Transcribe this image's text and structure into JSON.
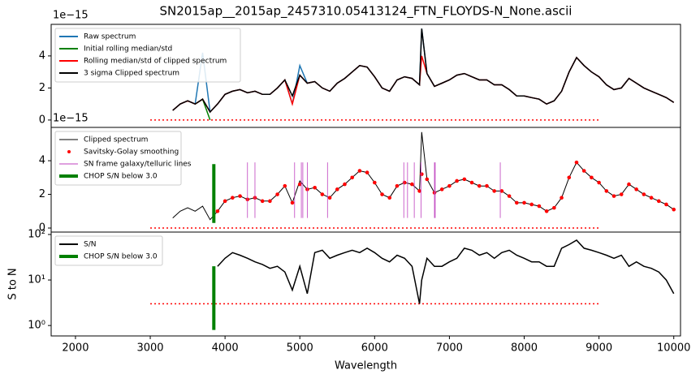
{
  "chart_data": [
    {
      "type": "line",
      "title": "SN2015ap__2015ap_2457310.05413124_FTN_FLOYDS-N_None.ascii",
      "offset_label": "1e−15",
      "xlim": [
        1675,
        10090
      ],
      "ylim": [
        -0.46,
        5.97
      ],
      "yticks": [
        0,
        2,
        4
      ],
      "x": [
        3300,
        3400,
        3500,
        3600,
        3700,
        3800,
        3900,
        4000,
        4100,
        4200,
        4300,
        4400,
        4500,
        4600,
        4700,
        4800,
        4900,
        5000,
        5100,
        5200,
        5300,
        5400,
        5500,
        5600,
        5700,
        5800,
        5900,
        6000,
        6100,
        6200,
        6300,
        6400,
        6500,
        6600,
        6630,
        6700,
        6800,
        6900,
        7000,
        7100,
        7200,
        7300,
        7400,
        7500,
        7600,
        7700,
        7800,
        7900,
        8000,
        8100,
        8200,
        8300,
        8400,
        8500,
        8600,
        8700,
        8800,
        8900,
        9000,
        9100,
        9200,
        9300,
        9400,
        9500,
        9600,
        9700,
        9800,
        9900,
        10000
      ],
      "hline": {
        "y": 0,
        "xmin": 3000,
        "xmax": 9000,
        "color": "#ff0000"
      },
      "series": [
        {
          "name": "Raw spectrum",
          "color": "#1f77b4",
          "values": [
            0.6,
            1.0,
            1.2,
            1.0,
            4.2,
            0.5,
            1.0,
            1.6,
            1.8,
            1.9,
            1.7,
            1.8,
            1.6,
            1.6,
            2.0,
            2.5,
            1.0,
            3.4,
            2.3,
            2.4,
            2.0,
            1.8,
            2.3,
            2.6,
            3.0,
            3.4,
            3.3,
            2.7,
            2.0,
            1.8,
            2.5,
            2.7,
            2.6,
            2.2,
            5.7,
            2.9,
            2.1,
            2.3,
            2.5,
            2.8,
            2.9,
            2.7,
            2.5,
            2.5,
            2.2,
            2.2,
            1.9,
            1.5,
            1.5,
            1.4,
            1.3,
            1.0,
            1.2,
            1.8,
            3.0,
            3.9,
            3.4,
            3.0,
            2.7,
            2.2,
            1.9,
            2.0,
            2.6,
            2.3,
            2.0,
            1.8,
            1.6,
            1.4,
            1.1
          ]
        },
        {
          "name": "Initial rolling median/std",
          "color": "#008000",
          "values": [
            null,
            null,
            null,
            1.0,
            1.3,
            0.0,
            null,
            null,
            null,
            null,
            null,
            null,
            null,
            null,
            null,
            null,
            null,
            null,
            null,
            null,
            null,
            null,
            null,
            null,
            null,
            null,
            null,
            null,
            null,
            null,
            null,
            null,
            null,
            null,
            null,
            null,
            null,
            null,
            null,
            null,
            null,
            null,
            null,
            null,
            null,
            null,
            null,
            null,
            null,
            null,
            null,
            null,
            null,
            null,
            null,
            null,
            null,
            null,
            null,
            null,
            null,
            null,
            null,
            null,
            null,
            null,
            null,
            null,
            null
          ]
        },
        {
          "name": "Rolling median/std of clipped spectrum",
          "color": "#ff0000",
          "values": [
            0.6,
            1.0,
            1.2,
            1.0,
            1.3,
            0.5,
            1.0,
            1.6,
            1.8,
            1.9,
            1.7,
            1.8,
            1.6,
            1.6,
            2.0,
            2.5,
            1.0,
            2.8,
            2.3,
            2.4,
            2.0,
            1.8,
            2.3,
            2.6,
            3.0,
            3.4,
            3.3,
            2.7,
            2.0,
            1.8,
            2.5,
            2.7,
            2.6,
            2.2,
            4.0,
            2.9,
            2.1,
            2.3,
            2.5,
            2.8,
            2.9,
            2.7,
            2.5,
            2.5,
            2.2,
            2.2,
            1.9,
            1.5,
            1.5,
            1.4,
            1.3,
            1.0,
            1.2,
            1.8,
            3.0,
            3.9,
            3.4,
            3.0,
            2.7,
            2.2,
            1.9,
            2.0,
            2.6,
            2.3,
            2.0,
            1.8,
            1.6,
            1.4,
            1.1
          ]
        },
        {
          "name": "3 sigma Clipped spectrum",
          "color": "#000000",
          "values": [
            0.6,
            1.0,
            1.2,
            1.0,
            1.3,
            0.5,
            1.0,
            1.6,
            1.8,
            1.9,
            1.7,
            1.8,
            1.6,
            1.6,
            2.0,
            2.5,
            1.5,
            2.8,
            2.3,
            2.4,
            2.0,
            1.8,
            2.3,
            2.6,
            3.0,
            3.4,
            3.3,
            2.7,
            2.0,
            1.8,
            2.5,
            2.7,
            2.6,
            2.2,
            5.7,
            2.9,
            2.1,
            2.3,
            2.5,
            2.8,
            2.9,
            2.7,
            2.5,
            2.5,
            2.2,
            2.2,
            1.9,
            1.5,
            1.5,
            1.4,
            1.3,
            1.0,
            1.2,
            1.8,
            3.0,
            3.9,
            3.4,
            3.0,
            2.7,
            2.2,
            1.9,
            2.0,
            2.6,
            2.3,
            2.0,
            1.8,
            1.6,
            1.4,
            1.1
          ]
        }
      ]
    },
    {
      "type": "line",
      "offset_label": "1e−15",
      "xlim": [
        1675,
        10090
      ],
      "ylim": [
        -0.24,
        5.98
      ],
      "yticks": [
        0,
        2,
        4
      ],
      "x": [
        3300,
        3400,
        3500,
        3600,
        3700,
        3800,
        3900,
        4000,
        4100,
        4200,
        4300,
        4400,
        4500,
        4600,
        4700,
        4800,
        4900,
        5000,
        5100,
        5200,
        5300,
        5400,
        5500,
        5600,
        5700,
        5800,
        5900,
        6000,
        6100,
        6200,
        6300,
        6400,
        6500,
        6600,
        6630,
        6700,
        6800,
        6900,
        7000,
        7100,
        7200,
        7300,
        7400,
        7500,
        7600,
        7700,
        7800,
        7900,
        8000,
        8100,
        8200,
        8300,
        8400,
        8500,
        8600,
        8700,
        8800,
        8900,
        9000,
        9100,
        9200,
        9300,
        9400,
        9500,
        9600,
        9700,
        9800,
        9900,
        10000
      ],
      "hline": {
        "y": 0,
        "xmin": 3000,
        "xmax": 9000,
        "color": "#ff0000"
      },
      "series": [
        {
          "name": "Clipped spectrum",
          "color": "#000000",
          "values": [
            0.6,
            1.0,
            1.2,
            1.0,
            1.3,
            0.5,
            1.0,
            1.6,
            1.8,
            1.9,
            1.7,
            1.8,
            1.6,
            1.6,
            2.0,
            2.5,
            1.5,
            2.8,
            2.3,
            2.4,
            2.0,
            1.8,
            2.3,
            2.6,
            3.0,
            3.4,
            3.3,
            2.7,
            2.0,
            1.8,
            2.5,
            2.7,
            2.6,
            2.2,
            5.7,
            2.9,
            2.1,
            2.3,
            2.5,
            2.8,
            2.9,
            2.7,
            2.5,
            2.5,
            2.2,
            2.2,
            1.9,
            1.5,
            1.5,
            1.4,
            1.3,
            1.0,
            1.2,
            1.8,
            3.0,
            3.9,
            3.4,
            3.0,
            2.7,
            2.2,
            1.9,
            2.0,
            2.6,
            2.3,
            2.0,
            1.8,
            1.6,
            1.4,
            1.1
          ]
        },
        {
          "name": "Savitsky-Golay smoothing",
          "color": "#ff0000",
          "style": "dots",
          "values": [
            null,
            null,
            null,
            null,
            null,
            null,
            1.0,
            1.6,
            1.8,
            1.9,
            1.7,
            1.8,
            1.6,
            1.6,
            2.0,
            2.5,
            1.5,
            2.6,
            2.3,
            2.4,
            2.0,
            1.8,
            2.3,
            2.6,
            3.0,
            3.4,
            3.3,
            2.7,
            2.0,
            1.8,
            2.5,
            2.7,
            2.6,
            2.2,
            3.2,
            2.9,
            2.1,
            2.3,
            2.5,
            2.8,
            2.9,
            2.7,
            2.5,
            2.5,
            2.2,
            2.2,
            1.9,
            1.5,
            1.5,
            1.4,
            1.3,
            1.0,
            1.2,
            1.8,
            3.0,
            3.9,
            3.4,
            3.0,
            2.7,
            2.2,
            1.9,
            2.0,
            2.6,
            2.3,
            2.0,
            1.8,
            1.6,
            1.4,
            1.1
          ]
        },
        {
          "name": "SN frame galaxy/telluric lines",
          "color": "#bf40bf",
          "style": "vline",
          "ymin": 0.6,
          "ymax": 3.9,
          "x": [
            4300,
            4400,
            4930,
            5020,
            5040,
            5100,
            5370,
            6390,
            6440,
            6530,
            6620,
            6800,
            6810,
            7680
          ]
        },
        {
          "name": "CHOP S/N below 3.0",
          "color": "#008000",
          "style": "vbar",
          "ymin": 0.3,
          "ymax": 3.8,
          "x": [
            3850
          ]
        }
      ]
    },
    {
      "type": "line",
      "ylabel": "S to N",
      "xlabel": "Wavelength",
      "y_scale": "log",
      "xlim": [
        1675,
        10090
      ],
      "ylim": [
        0.59,
        113
      ],
      "yticks": [
        {
          "value": 1,
          "label": "10⁰"
        },
        {
          "value": 10,
          "label": "10¹"
        },
        {
          "value": 100,
          "label": "10²"
        }
      ],
      "xticks": [
        2000,
        3000,
        4000,
        5000,
        6000,
        7000,
        8000,
        9000,
        10000
      ],
      "x": [
        3300,
        3400,
        3500,
        3600,
        3700,
        3800,
        3900,
        4000,
        4100,
        4200,
        4300,
        4400,
        4500,
        4600,
        4700,
        4800,
        4900,
        5000,
        5100,
        5200,
        5300,
        5400,
        5500,
        5600,
        5700,
        5800,
        5900,
        6000,
        6100,
        6200,
        6300,
        6400,
        6500,
        6600,
        6630,
        6700,
        6800,
        6900,
        7000,
        7100,
        7200,
        7300,
        7400,
        7500,
        7600,
        7700,
        7800,
        7900,
        8000,
        8100,
        8200,
        8300,
        8400,
        8500,
        8600,
        8700,
        8800,
        8900,
        9000,
        9100,
        9200,
        9300,
        9400,
        9500,
        9600,
        9700,
        9800,
        9900,
        10000
      ],
      "hline": {
        "y": 3,
        "xmin": 3000,
        "xmax": 9000,
        "color": "#ff0000"
      },
      "series": [
        {
          "name": "S/N",
          "color": "#000000",
          "values": [
            null,
            null,
            null,
            null,
            null,
            null,
            20,
            30,
            40,
            35,
            30,
            25,
            22,
            18,
            20,
            15,
            6,
            20,
            5,
            40,
            45,
            30,
            35,
            40,
            45,
            40,
            50,
            40,
            30,
            25,
            35,
            30,
            20,
            3,
            10,
            30,
            20,
            20,
            25,
            30,
            50,
            45,
            35,
            40,
            30,
            40,
            45,
            35,
            30,
            25,
            25,
            20,
            20,
            50,
            60,
            75,
            50,
            45,
            40,
            35,
            30,
            35,
            20,
            25,
            20,
            18,
            15,
            10,
            5
          ]
        },
        {
          "name": "CHOP S/N below 3.0",
          "color": "#008000",
          "style": "vbar",
          "ymin": 0.8,
          "ymax": 20,
          "x": [
            3850
          ]
        }
      ]
    }
  ]
}
